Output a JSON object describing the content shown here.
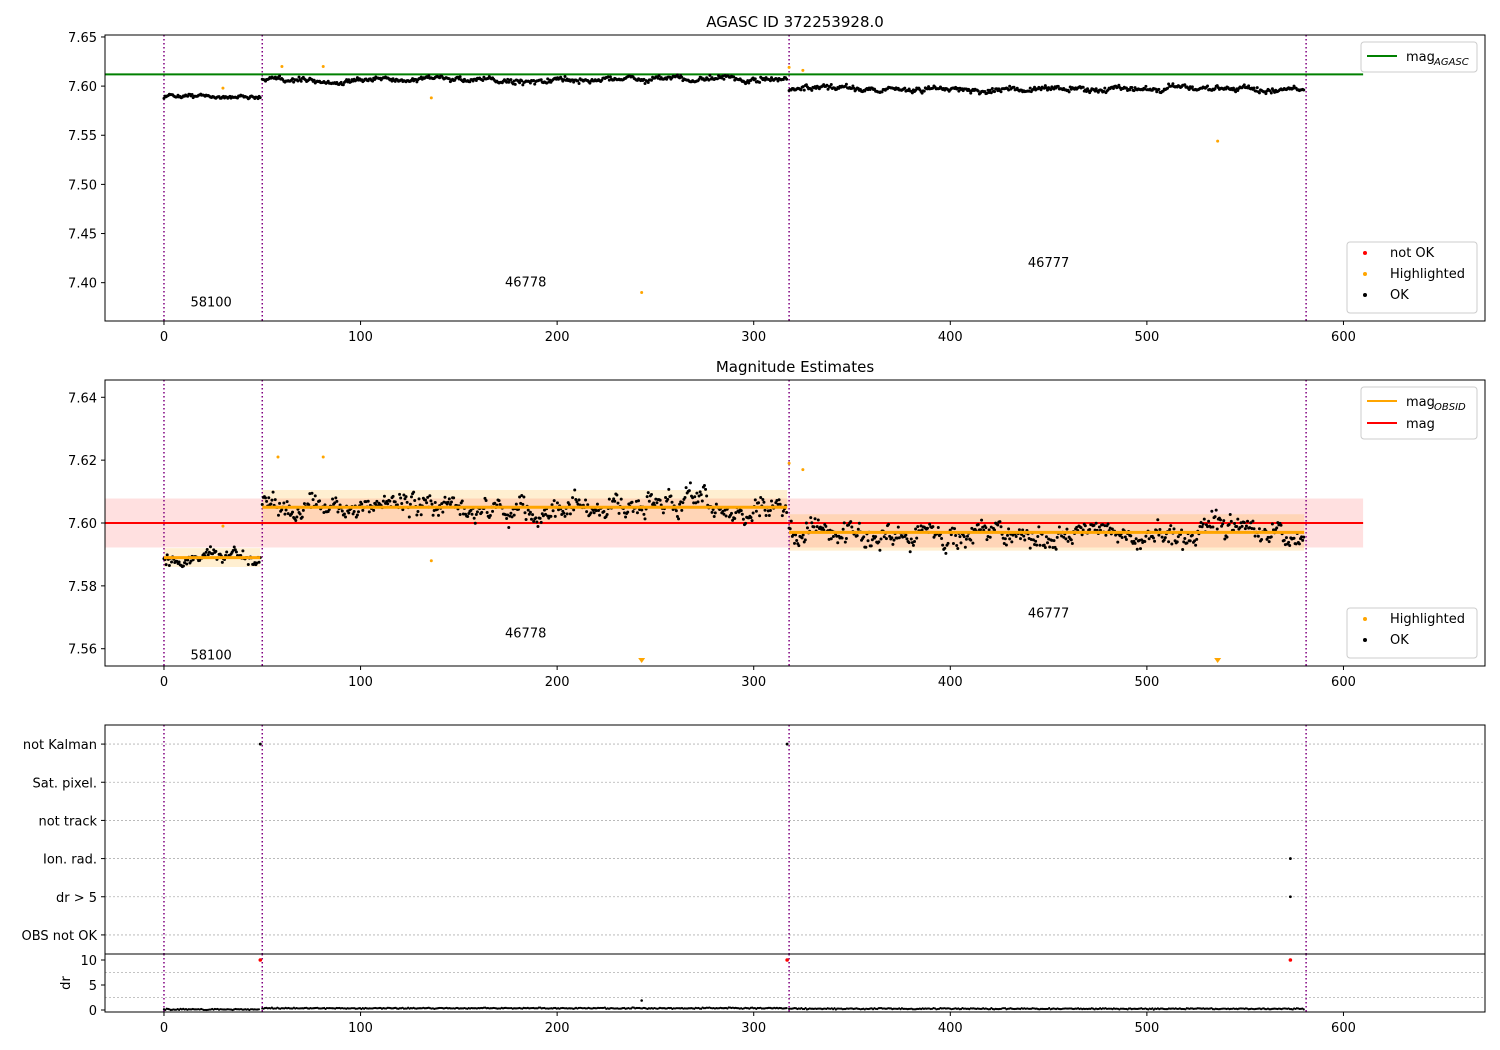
{
  "figure": {
    "colors": {
      "ok": "#000000",
      "highlighted": "#ffa500",
      "not_ok": "#ff0000",
      "agasc_line": "#008000",
      "mag_line": "#ff0000",
      "obsid_line": "#ffa500",
      "obs_boundary": "#800080",
      "grid": "#b0b0b0"
    }
  },
  "chart_data": [
    {
      "type": "scatter",
      "title": "AGASC ID 372253928.0",
      "xlabel": "",
      "ylabel": "",
      "xlim": [
        -30,
        672
      ],
      "ylim": [
        7.361,
        7.652
      ],
      "xticks": [
        0,
        100,
        200,
        300,
        400,
        500,
        600
      ],
      "yticks": [
        7.4,
        7.45,
        7.5,
        7.55,
        7.6,
        7.65
      ],
      "ytick_labels": [
        "7.40",
        "7.45",
        "7.50",
        "7.55",
        "7.60",
        "7.65"
      ],
      "legend_lines": [
        {
          "label": "mag",
          "sub": "AGASC",
          "color": "#008000"
        }
      ],
      "legend_points": [
        {
          "label": "not OK",
          "color": "#ff0000"
        },
        {
          "label": "Highlighted",
          "color": "#ffa500"
        },
        {
          "label": "OK",
          "color": "#000000"
        }
      ],
      "obs_boundaries": [
        0,
        50,
        318,
        581
      ],
      "obs_labels": [
        {
          "text": "58100",
          "x": 24,
          "y": 7.376
        },
        {
          "text": "46778",
          "x": 184,
          "y": 7.396
        },
        {
          "text": "46777",
          "x": 450,
          "y": 7.416
        }
      ],
      "hlines": [
        {
          "name": "mag_AGASC",
          "y": 7.612,
          "x0": -30,
          "x1": 610,
          "color": "#008000"
        }
      ],
      "segments": [
        {
          "x0": 0,
          "x1": 49,
          "level": 7.589,
          "amp": 0.004
        },
        {
          "x0": 50,
          "x1": 317,
          "level": 7.606,
          "amp": 0.006
        },
        {
          "x0": 318,
          "x1": 580,
          "level": 7.597,
          "amp": 0.006
        }
      ],
      "highlighted_points": [
        [
          30,
          7.598
        ],
        [
          60,
          7.62
        ],
        [
          81,
          7.62
        ],
        [
          136,
          7.588
        ],
        [
          243,
          7.39
        ],
        [
          318,
          7.619
        ],
        [
          325,
          7.616
        ],
        [
          536,
          7.544
        ]
      ]
    },
    {
      "type": "scatter",
      "title": "Magnitude Estimates",
      "xlabel": "",
      "ylabel": "",
      "xlim": [
        -30,
        672
      ],
      "ylim": [
        7.5545,
        7.6455
      ],
      "xticks": [
        0,
        100,
        200,
        300,
        400,
        500,
        600
      ],
      "yticks": [
        7.56,
        7.58,
        7.6,
        7.62,
        7.64
      ],
      "ytick_labels": [
        "7.56",
        "7.58",
        "7.60",
        "7.62",
        "7.64"
      ],
      "legend_lines": [
        {
          "label": "mag",
          "sub": "OBSID",
          "color": "#ffa500"
        },
        {
          "label": "mag",
          "sub": "",
          "color": "#ff0000"
        }
      ],
      "legend_points": [
        {
          "label": "Highlighted",
          "color": "#ffa500"
        },
        {
          "label": "OK",
          "color": "#000000"
        }
      ],
      "obs_boundaries": [
        0,
        50,
        318,
        581
      ],
      "obs_labels": [
        {
          "text": "58100",
          "x": 24,
          "y": 7.5565
        },
        {
          "text": "46778",
          "x": 184,
          "y": 7.5635
        },
        {
          "text": "46777",
          "x": 450,
          "y": 7.57
        }
      ],
      "mag_band": {
        "x0": -30,
        "x1": 610,
        "center": 7.6,
        "half_width": 0.0078
      },
      "obsid_levels": [
        {
          "x0": 0,
          "x1": 49,
          "mag": 7.589,
          "half_width": 0.003
        },
        {
          "x0": 50,
          "x1": 317,
          "mag": 7.605,
          "half_width": 0.0055
        },
        {
          "x0": 318,
          "x1": 580,
          "mag": 7.597,
          "half_width": 0.0058
        }
      ],
      "segments": [
        {
          "x0": 0,
          "x1": 49,
          "level": 7.589,
          "amp": 0.0045
        },
        {
          "x0": 50,
          "x1": 317,
          "level": 7.605,
          "amp": 0.0075
        },
        {
          "x0": 318,
          "x1": 580,
          "level": 7.597,
          "amp": 0.0075
        }
      ],
      "highlighted_points": [
        [
          30,
          7.599
        ],
        [
          58,
          7.621
        ],
        [
          81,
          7.621
        ],
        [
          136,
          7.588
        ],
        [
          318,
          7.619
        ],
        [
          325,
          7.617
        ]
      ],
      "off_scale_markers": [
        243,
        536
      ]
    },
    {
      "type": "scatter",
      "title": "",
      "xlabel": "",
      "ylabel": "",
      "xlim": [
        -30,
        672
      ],
      "ylim": [
        0.5,
        6.5
      ],
      "flag_rows": [
        "OBS not OK",
        "dr > 5",
        "Ion. rad.",
        "not track",
        "Sat. pixel.",
        "not Kalman"
      ],
      "flag_row_order_top_to_bottom": [
        "not Kalman",
        "not track",
        "Sat. pixel.",
        "Ion. rad.",
        "dr > 5",
        "OBS not OK"
      ],
      "flag_points": [
        {
          "flag": "not Kalman",
          "x": 49
        },
        {
          "flag": "not Kalman",
          "x": 317
        },
        {
          "flag": "Ion. rad.",
          "x": 573
        },
        {
          "flag": "dr > 5",
          "x": 573
        }
      ],
      "obs_boundaries": [
        0,
        50,
        318,
        581
      ]
    },
    {
      "type": "scatter",
      "title": "",
      "xlabel": "",
      "ylabel": "dr",
      "xlim": [
        -30,
        672
      ],
      "ylim": [
        -0.4,
        11.2
      ],
      "xticks": [
        0,
        100,
        200,
        300,
        400,
        500,
        600
      ],
      "yticks": [
        0,
        5,
        10
      ],
      "ytick_labels": [
        "0",
        "5",
        "10"
      ],
      "baseline_segments": [
        {
          "x0": 0,
          "x1": 49,
          "level": 0.12
        },
        {
          "x0": 50,
          "x1": 317,
          "level": 0.35
        },
        {
          "x0": 318,
          "x1": 580,
          "level": 0.25
        }
      ],
      "outlier_points": [
        [
          243,
          1.9
        ]
      ],
      "not_ok_points": [
        [
          49,
          10.0
        ],
        [
          317,
          10.0
        ],
        [
          573,
          10.0
        ]
      ],
      "obs_boundaries": [
        0,
        50,
        318,
        581
      ]
    }
  ]
}
